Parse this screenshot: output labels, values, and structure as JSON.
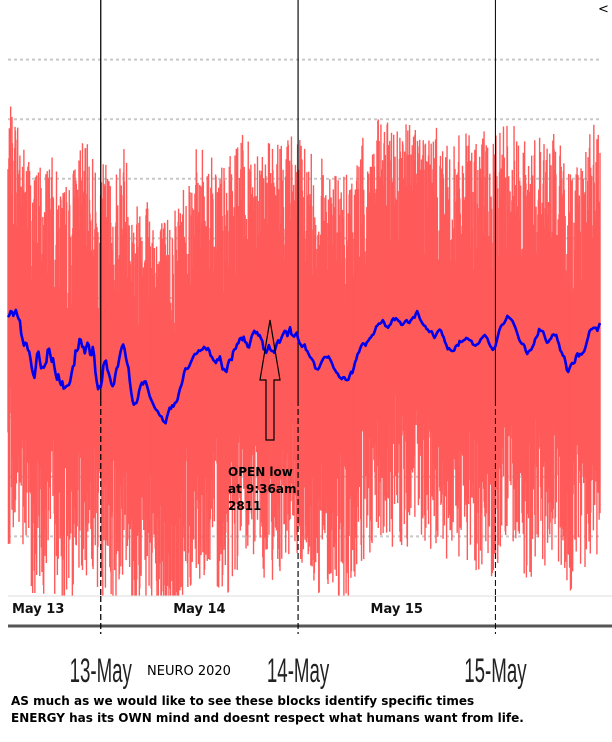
{
  "chart_data": {
    "type": "line",
    "title": "",
    "series": [
      {
        "name": "",
        "color": "#0000ee",
        "values": [
          68,
          71,
          78,
          77,
          70,
          75,
          80,
          71,
          65,
          62,
          40,
          30,
          20,
          25,
          24,
          13,
          10,
          -2,
          -18,
          -28,
          -34,
          -15,
          6,
          10,
          -5,
          -18,
          -16,
          -17,
          -12,
          -8,
          13,
          15,
          4,
          -7,
          -1,
          -16,
          -28,
          -37,
          -28,
          -40,
          -46,
          -40,
          -52,
          -51,
          -48,
          -47,
          -46,
          -40,
          -26,
          -15,
          -13,
          12,
          11,
          15,
          31,
          30,
          18,
          18,
          7,
          17,
          25,
          21,
          5,
          4,
          18,
          4,
          -24,
          -40,
          -53,
          -48,
          -50,
          -38,
          -13,
          -7,
          -5,
          -20,
          -26,
          -34,
          -44,
          -48,
          -44,
          -29,
          -18,
          -15,
          -2,
          10,
          18,
          22,
          15,
          0,
          -10,
          -17,
          -40,
          -58,
          -72,
          -79,
          -77,
          -76,
          -69,
          -56,
          -48,
          -42,
          -45,
          -40,
          -40,
          -48,
          -56,
          -65,
          -70,
          -75,
          -80,
          -85,
          -88,
          -90,
          -95,
          -98,
          -99,
          -106,
          -108,
          -110,
          -100,
          -92,
          -84,
          -86,
          -80,
          -82,
          -76,
          -75,
          -71,
          -60,
          -51,
          -46,
          -37,
          -25,
          -18,
          -19,
          -18,
          -14,
          -8,
          -3,
          2,
          6,
          6,
          8,
          12,
          11,
          13,
          14,
          18,
          16,
          13,
          16,
          12,
          3,
          1,
          -4,
          -6,
          -9,
          -3,
          -4,
          2,
          -8,
          -20,
          -19,
          -22,
          -24,
          -12,
          -4,
          -3,
          -4,
          10,
          14,
          15,
          23,
          24,
          32,
          33,
          29,
          35,
          26,
          25,
          18,
          17,
          27,
          36,
          41,
          45,
          41,
          43,
          37,
          38,
          32,
          28,
          14,
          13,
          8,
          14,
          21,
          14,
          11,
          11,
          8,
          16,
          24,
          29,
          25,
          30,
          36,
          41,
          45,
          44,
          36,
          44,
          51,
          39,
          37,
          35,
          39,
          42,
          32,
          25,
          22,
          18,
          20,
          22,
          13,
          11,
          6,
          1,
          -1,
          -4,
          -8,
          -18,
          -19,
          -20,
          -17,
          -11,
          -6,
          -2,
          1,
          1,
          0,
          2,
          -2,
          -6,
          -12,
          -18,
          -21,
          -25,
          -27,
          -32,
          -34,
          -36,
          -33,
          -33,
          -37,
          -38,
          -37,
          -30,
          -24,
          -26,
          -18,
          -8,
          -3,
          6,
          9,
          16,
          21,
          24,
          23,
          20,
          26,
          28,
          32,
          34,
          38,
          39,
          45,
          52,
          54,
          57,
          57,
          59,
          63,
          59,
          53,
          52,
          50,
          54,
          56,
          63,
          66,
          63,
          66,
          64,
          61,
          60,
          55,
          55,
          58,
          61,
          63,
          59,
          58,
          62,
          65,
          68,
          67,
          74,
          78,
          72,
          65,
          61,
          57,
          54,
          53,
          48,
          47,
          43,
          44,
          44,
          38,
          33,
          37,
          42,
          45,
          47,
          45,
          38,
          34,
          26,
          21,
          14,
          16,
          13,
          11,
          11,
          12,
          19,
          21,
          20,
          28,
          26,
          27,
          29,
          30,
          33,
          32,
          30,
          29,
          28,
          22,
          21,
          20,
          22,
          23,
          26,
          31,
          33,
          36,
          38,
          35,
          32,
          25,
          20,
          17,
          13,
          15,
          19,
          28,
          37,
          46,
          52,
          55,
          56,
          59,
          64,
          70,
          68,
          66,
          64,
          61,
          56,
          51,
          44,
          37,
          30,
          26,
          23,
          23,
          20,
          11,
          6,
          10,
          12,
          13,
          18,
          22,
          31,
          34,
          38,
          48,
          45,
          45,
          44,
          37,
          30,
          25,
          26,
          30,
          32,
          38,
          39,
          37,
          38,
          29,
          23,
          12,
          9,
          3,
          2,
          -8,
          -21,
          -24,
          -18,
          -12,
          -9,
          -10,
          -8,
          3,
          7,
          2,
          6,
          5,
          8,
          10,
          17,
          26,
          34,
          44,
          47,
          48,
          50,
          50,
          50,
          45,
          52,
          58
        ]
      }
    ],
    "bands": [
      {
        "name": "",
        "color": "#ff5a5a",
        "center": "series",
        "lower_spread": 160,
        "upper_spread": 150
      }
    ],
    "x_units": "days",
    "xlim": [
      0,
      3.0
    ],
    "ylim": [
      -400,
      600
    ],
    "grid": true,
    "grid_style": "dotted",
    "sessions": [
      {
        "label": "May 13",
        "x_start": 0,
        "x_end": 0.47
      },
      {
        "label": "May 14",
        "x_start": 0.47,
        "x_end": 1.47
      },
      {
        "label": "May 15",
        "x_start": 1.47,
        "x_end": 2.47
      }
    ],
    "date_ticks": [
      {
        "label": "13-May",
        "x": 0.47
      },
      {
        "label": "14-May",
        "x": 1.47
      },
      {
        "label": "15-May",
        "x": 2.47
      }
    ],
    "annotations": [
      {
        "lines": [
          "OPEN low",
          "at 9:36am",
          "2811"
        ],
        "arrow": "up"
      }
    ],
    "side_indicator": "<"
  },
  "overlay_text": "NEURO 2020",
  "caption": {
    "line1": "AS much as we would like to see these blocks identify specific times",
    "line2": "ENERGY has its OWN mind and doesnt respect what humans want from life."
  }
}
